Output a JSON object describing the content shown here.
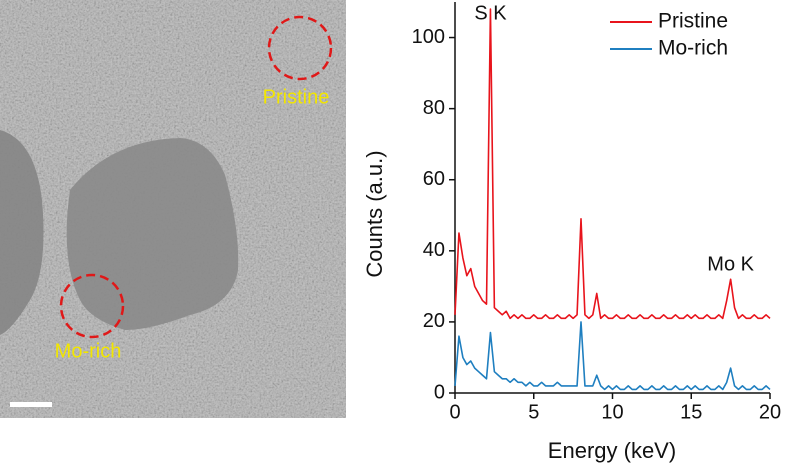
{
  "image": {
    "labels": [
      "Pristine",
      "Mo-rich"
    ]
  },
  "chart_data": {
    "type": "line",
    "xlabel": "Energy (keV)",
    "ylabel": "Counts (a.u.)",
    "annotations": [
      {
        "text": "S K",
        "x": 2.25,
        "y": 108
      },
      {
        "text": "Mo K",
        "x": 17.5,
        "y": 32
      }
    ],
    "x": [
      0,
      0.25,
      0.5,
      0.75,
      1,
      1.25,
      1.5,
      1.75,
      2,
      2.25,
      2.5,
      2.75,
      3,
      3.25,
      3.5,
      3.75,
      4,
      4.25,
      4.5,
      4.75,
      5,
      5.25,
      5.5,
      5.75,
      6,
      6.25,
      6.5,
      6.75,
      7,
      7.25,
      7.5,
      7.75,
      8,
      8.25,
      8.5,
      8.75,
      9,
      9.25,
      9.5,
      9.75,
      10,
      10.25,
      10.5,
      10.75,
      11,
      11.25,
      11.5,
      11.75,
      12,
      12.25,
      12.5,
      12.75,
      13,
      13.25,
      13.5,
      13.75,
      14,
      14.25,
      14.5,
      14.75,
      15,
      15.25,
      15.5,
      15.75,
      16,
      16.25,
      16.5,
      16.75,
      17,
      17.25,
      17.5,
      17.75,
      18,
      18.25,
      18.5,
      18.75,
      19,
      19.25,
      19.5,
      19.75,
      20
    ],
    "series": [
      {
        "name": "Pristine",
        "color": "#e8141c",
        "values": [
          22,
          45,
          38,
          33,
          35,
          30,
          28,
          26,
          25,
          108,
          24,
          23,
          22,
          23,
          21,
          22,
          21,
          22,
          21,
          21,
          22,
          21,
          21,
          22,
          21,
          21,
          22,
          21,
          21,
          22,
          21,
          22,
          49,
          22,
          21,
          22,
          28,
          21,
          22,
          21,
          21,
          22,
          21,
          21,
          22,
          21,
          21,
          22,
          21,
          21,
          22,
          21,
          21,
          22,
          21,
          21,
          22,
          21,
          21,
          22,
          21,
          22,
          21,
          21,
          22,
          21,
          21,
          22,
          21,
          26,
          32,
          24,
          21,
          22,
          21,
          21,
          22,
          21,
          21,
          22,
          21
        ]
      },
      {
        "name": "Mo-rich",
        "color": "#1f7fc0",
        "values": [
          2,
          16,
          10,
          8,
          9,
          7,
          6,
          5,
          4,
          17,
          6,
          5,
          4,
          4,
          3,
          4,
          3,
          3,
          2,
          3,
          2,
          2,
          3,
          2,
          2,
          2,
          3,
          2,
          2,
          2,
          2,
          2,
          20,
          2,
          2,
          2,
          5,
          2,
          1,
          2,
          1,
          2,
          1,
          1,
          2,
          1,
          1,
          2,
          1,
          1,
          2,
          1,
          1,
          2,
          1,
          1,
          2,
          1,
          1,
          2,
          1,
          2,
          1,
          1,
          2,
          1,
          1,
          2,
          1,
          3,
          7,
          2,
          1,
          2,
          1,
          1,
          2,
          1,
          1,
          2,
          1
        ]
      }
    ],
    "xlim": [
      0,
      20
    ],
    "ylim": [
      0,
      110
    ],
    "xticks": [
      0,
      5,
      10,
      15,
      20
    ],
    "yticks": [
      0,
      20,
      40,
      60,
      80,
      100
    ],
    "grid": false,
    "legend": "upper right"
  }
}
